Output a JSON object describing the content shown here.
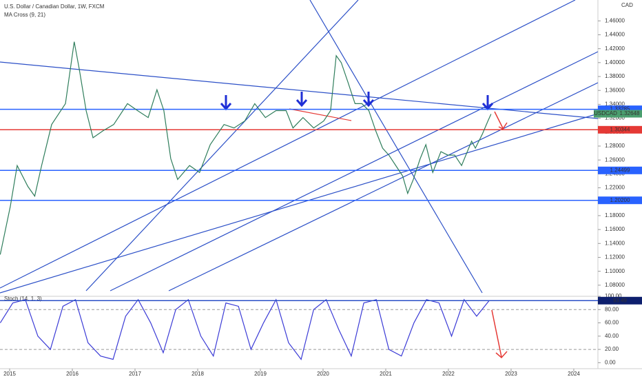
{
  "chart_data": [
    {
      "type": "line",
      "title": "U.S. Dollar / Canadian Dollar, 1W, FXCM",
      "subtitle": "MA Cross (9, 21)",
      "y_axis_label": "CAD",
      "x": [
        2014.85,
        2015.01,
        2015.12,
        2015.29,
        2015.4,
        2015.51,
        2015.67,
        2015.89,
        2016.03,
        2016.11,
        2016.22,
        2016.33,
        2016.49,
        2016.66,
        2016.88,
        2017.04,
        2017.21,
        2017.35,
        2017.46,
        2017.57,
        2017.68,
        2017.87,
        2018.03,
        2018.2,
        2018.42,
        2018.58,
        2018.75,
        2018.91,
        2019.08,
        2019.25,
        2019.41,
        2019.52,
        2019.68,
        2019.85,
        2020.01,
        2020.12,
        2020.21,
        2020.29,
        2020.4,
        2020.51,
        2020.62,
        2020.73,
        2020.84,
        2020.95,
        2021.05,
        2021.16,
        2021.27,
        2021.35,
        2021.44,
        2021.55,
        2021.64,
        2021.75,
        2021.88,
        2021.99,
        2022.1,
        2022.21,
        2022.37,
        2022.43,
        2022.54,
        2022.63,
        2022.68
      ],
      "series": [
        {
          "name": "USDCAD",
          "color": "#2e7d5b",
          "values": [
            1.124,
            1.193,
            1.252,
            1.222,
            1.208,
            1.252,
            1.311,
            1.341,
            1.43,
            1.391,
            1.331,
            1.292,
            1.302,
            1.311,
            1.341,
            1.331,
            1.321,
            1.361,
            1.331,
            1.262,
            1.232,
            1.252,
            1.242,
            1.282,
            1.311,
            1.306,
            1.316,
            1.341,
            1.321,
            1.331,
            1.331,
            1.306,
            1.321,
            1.306,
            1.316,
            1.331,
            1.41,
            1.4,
            1.371,
            1.341,
            1.341,
            1.331,
            1.302,
            1.277,
            1.267,
            1.252,
            1.237,
            1.212,
            1.232,
            1.262,
            1.282,
            1.242,
            1.272,
            1.267,
            1.267,
            1.252,
            1.287,
            1.277,
            1.297,
            1.316,
            1.326
          ]
        }
      ],
      "xlim": [
        2014.846,
        2024.385
      ],
      "xticks": [
        2015,
        2016,
        2017,
        2018,
        2019,
        2020,
        2021,
        2022,
        2023,
        2024
      ],
      "ylim": [
        1.064,
        1.49
      ],
      "yticks": [
        {
          "value": 1.08,
          "label": "1.08000"
        },
        {
          "value": 1.1,
          "label": "1.10000"
        },
        {
          "value": 1.12,
          "label": "1.12000"
        },
        {
          "value": 1.14,
          "label": "1.14000"
        },
        {
          "value": 1.16,
          "label": "1.16000"
        },
        {
          "value": 1.18,
          "label": "1.18000"
        },
        {
          "value": 1.2,
          "label": "1.20000"
        },
        {
          "value": 1.22,
          "label": "1.22000"
        },
        {
          "value": 1.24,
          "label": "1.24000"
        },
        {
          "value": 1.26,
          "label": "1.26000"
        },
        {
          "value": 1.28,
          "label": "1.28000"
        },
        {
          "value": 1.3,
          "label": "1.30000"
        },
        {
          "value": 1.32,
          "label": "1.32000"
        },
        {
          "value": 1.34,
          "label": "1.34000"
        },
        {
          "value": 1.36,
          "label": "1.36000"
        },
        {
          "value": 1.38,
          "label": "1.38000"
        },
        {
          "value": 1.4,
          "label": "1.40000"
        },
        {
          "value": 1.42,
          "label": "1.42000"
        },
        {
          "value": 1.44,
          "label": "1.44000"
        },
        {
          "value": 1.46,
          "label": "1.46000"
        }
      ],
      "levels": [
        {
          "value": 1.33285,
          "label": "1.33285",
          "color": "#2962ff"
        },
        {
          "value": 1.30344,
          "label": "1.30344",
          "color": "#e53935"
        },
        {
          "value": 1.24499,
          "label": "1.24499",
          "color": "#2962ff"
        },
        {
          "value": 1.202,
          "label": "1.20200",
          "color": "#2962ff"
        }
      ],
      "last_price": {
        "name": "USDCAD",
        "value": 1.32648,
        "label": "1.32648",
        "color": "#4a9e6e"
      }
    },
    {
      "type": "line",
      "title": "Stoch (14, 1, 3)",
      "x": [
        2014.85,
        2015.05,
        2015.25,
        2015.45,
        2015.65,
        2015.85,
        2016.05,
        2016.25,
        2016.45,
        2016.65,
        2016.85,
        2017.05,
        2017.25,
        2017.45,
        2017.65,
        2017.85,
        2018.05,
        2018.25,
        2018.45,
        2018.65,
        2018.85,
        2019.05,
        2019.25,
        2019.45,
        2019.65,
        2019.85,
        2020.05,
        2020.25,
        2020.45,
        2020.65,
        2020.85,
        2021.05,
        2021.25,
        2021.45,
        2021.65,
        2021.85,
        2022.05,
        2022.25,
        2022.45,
        2022.65
      ],
      "series": [
        {
          "name": "%K",
          "color": "#3b3bd6",
          "values": [
            60,
            90,
            95,
            40,
            20,
            85,
            95,
            30,
            10,
            5,
            70,
            95,
            60,
            15,
            80,
            95,
            40,
            10,
            90,
            85,
            20,
            60,
            95,
            30,
            5,
            80,
            95,
            50,
            10,
            90,
            95,
            20,
            10,
            60,
            95,
            90,
            40,
            95,
            70,
            93.49
          ]
        }
      ],
      "xlim": [
        2014.846,
        2024.385
      ],
      "ylim": [
        -9,
        100
      ],
      "yticks": [
        {
          "value": 0,
          "label": "0.00"
        },
        {
          "value": 20,
          "label": "20.00"
        },
        {
          "value": 40,
          "label": "40.00"
        },
        {
          "value": 60,
          "label": "60.00"
        },
        {
          "value": 80,
          "label": "80.00"
        },
        {
          "value": 100,
          "label": "100.00"
        }
      ],
      "last_value": {
        "value": 93.49,
        "label": "93.49",
        "color": "#0d1f6e"
      }
    }
  ]
}
